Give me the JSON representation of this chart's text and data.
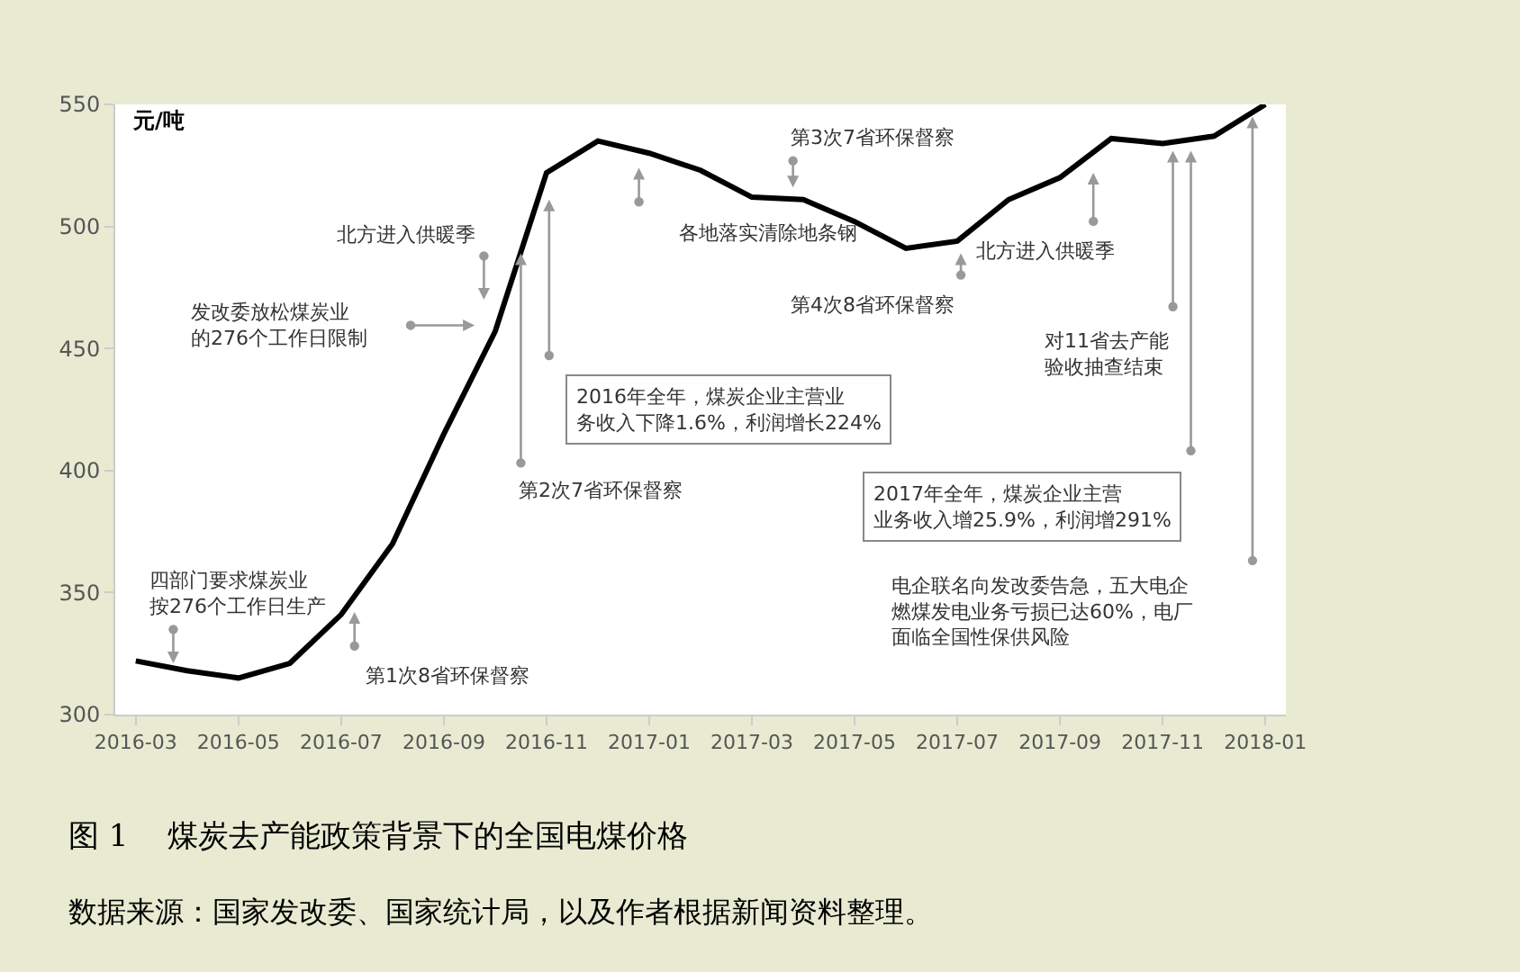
{
  "chart_data": {
    "type": "line",
    "title": "图 1    煤炭去产能政策背景下的全国电煤价格",
    "ylabel": "元/吨",
    "categories": [
      "2016-03",
      null,
      "2016-05",
      null,
      "2016-07",
      null,
      "2016-09",
      null,
      "2016-11",
      null,
      "2017-01",
      null,
      "2017-03",
      null,
      "2017-05",
      null,
      "2017-07",
      null,
      "2017-09",
      null,
      "2017-11",
      null,
      "2018-01"
    ],
    "series": [
      {
        "color": "#000000",
        "values": [
          322,
          318,
          315,
          321,
          341,
          370,
          415,
          457,
          522,
          535,
          530,
          523,
          512,
          511,
          502,
          491,
          494,
          511,
          520,
          536,
          534,
          537,
          550
        ]
      }
    ],
    "ylim": [
      300,
      550
    ],
    "yticks": [
      300,
      350,
      400,
      450,
      500,
      550
    ],
    "annotations": [
      "四部门要求煤炭业按276个工作日生产",
      "第1次8省环保督察",
      "发改委放松煤炭业的276个工作日限制",
      "北方进入供暖季",
      "第2次7省环保督察",
      "2016年全年，煤炭企业主营业务收入下降1.6%，利润增长224%",
      "各地落实清除地条钢",
      "第3次7省环保督察",
      "第4次8省环保督察",
      "北方进入供暖季",
      "对11省去产能验收抽查结束",
      "2017年全年，煤炭企业主营业务收入增25.9%，利润增291%",
      "电企联名向发改委告急，五大电企燃煤发电业务亏损已达60%，电厂面临全国性保供风险",
      "数据来源：国家发改委、国家统计局，以及作者根据新闻资料整理。"
    ]
  }
}
